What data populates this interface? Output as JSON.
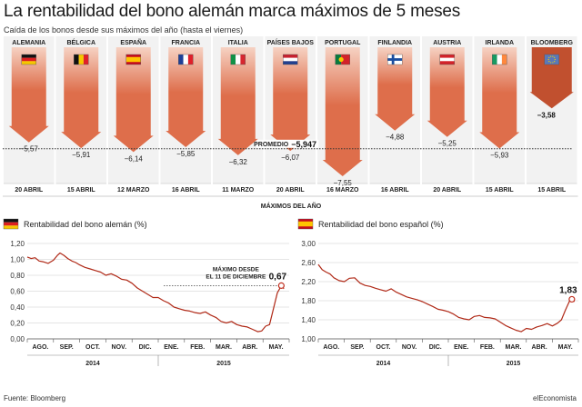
{
  "title": "La rentabilidad del bono alemán marca máximos de 5 meses",
  "subtitle": "Caída de los bonos desde sus máximos del año (hasta el viernes)",
  "source": "Fuente: Bloomberg",
  "credit": "elEconomista",
  "colors": {
    "arrow": "#de6e4b",
    "arrow_gradient_top": "#f6d2c3",
    "arrow_dark": "#c1502f",
    "column_bg": "#f2f2f2",
    "line": "#b02a18",
    "marker": "#c03020",
    "axis": "#555555"
  },
  "chart_data": [
    {
      "type": "bar",
      "name": "arrows",
      "categories": [
        "ALEMANIA",
        "BÉLGICA",
        "ESPAÑA",
        "FRANCIA",
        "ITALIA",
        "PAÍSES BAJOS",
        "PORTUGAL",
        "FINLANDIA",
        "AUSTRIA",
        "IRLANDA",
        "BLOOMBERG"
      ],
      "flags": [
        "germany",
        "belgium",
        "spain",
        "france",
        "italy",
        "netherlands",
        "portugal",
        "finland",
        "austria",
        "ireland",
        "eurozone"
      ],
      "values": [
        -5.57,
        -5.91,
        -6.14,
        -5.85,
        -6.32,
        -6.07,
        -7.55,
        -4.88,
        -5.25,
        -5.93,
        -3.58
      ],
      "value_labels": [
        "−5,57",
        "−5,91",
        "−6,14",
        "−5,85",
        "−6,32",
        "−6,07",
        "−7,55",
        "−4,88",
        "−5,25",
        "−5,93",
        "−3,58"
      ],
      "dates": [
        "20 ABRIL",
        "15 ABRIL",
        "12 MARZO",
        "16 ABRIL",
        "11 MARZO",
        "20 ABRIL",
        "16 MARZO",
        "16 ABRIL",
        "20 ABRIL",
        "15 ABRIL",
        "15 ABRIL"
      ],
      "average": -5.947,
      "average_label": "PROMEDIO",
      "average_value_label": "−5,947",
      "xlabel": "MÁXIMOS DEL AÑO"
    },
    {
      "type": "line",
      "name": "german",
      "legend": "Rentabilidad del bono alemán (%)",
      "ylim": [
        0,
        1.2
      ],
      "yticks": [
        0,
        0.2,
        0.4,
        0.6,
        0.8,
        1.0,
        1.2
      ],
      "ytick_labels": [
        "0,00",
        "0,20",
        "0,40",
        "0,60",
        "0,80",
        "1,00",
        "1,20"
      ],
      "xlim": [
        0,
        10
      ],
      "xticks": [
        0.5,
        1.5,
        2.5,
        3.5,
        4.5,
        5.5,
        6.5,
        7.5,
        8.5,
        9.5
      ],
      "xtick_labels": [
        "AGO.",
        "SEP.",
        "OCT.",
        "NOV.",
        "DIC.",
        "ENE.",
        "FEB.",
        "MAR.",
        "ABR.",
        "MAY."
      ],
      "years": [
        {
          "label": "2014",
          "at": 2.5
        },
        {
          "label": "2015",
          "at": 7.5
        }
      ],
      "year_dividers": [
        5
      ],
      "grid": true,
      "annotation": {
        "text": [
          "MÁXIMO DESDE",
          "EL 11 DE DICIEMBRE"
        ],
        "value_label": "0,67",
        "value": 0.67,
        "x": 9.7
      },
      "x": [
        0,
        0.15,
        0.3,
        0.45,
        0.6,
        0.8,
        1.0,
        1.15,
        1.25,
        1.4,
        1.55,
        1.7,
        1.85,
        2.0,
        2.2,
        2.4,
        2.6,
        2.8,
        3.0,
        3.2,
        3.4,
        3.6,
        3.8,
        4.0,
        4.2,
        4.4,
        4.6,
        4.8,
        5.0,
        5.2,
        5.4,
        5.6,
        5.8,
        6.0,
        6.2,
        6.4,
        6.6,
        6.8,
        7.0,
        7.2,
        7.4,
        7.6,
        7.8,
        8.0,
        8.2,
        8.4,
        8.6,
        8.8,
        8.95,
        9.1,
        9.25,
        9.4,
        9.55,
        9.7,
        9.8
      ],
      "y": [
        1.03,
        1.01,
        1.02,
        0.98,
        0.97,
        0.95,
        0.99,
        1.05,
        1.08,
        1.05,
        1.01,
        0.98,
        0.96,
        0.93,
        0.9,
        0.88,
        0.86,
        0.84,
        0.8,
        0.82,
        0.79,
        0.75,
        0.74,
        0.7,
        0.64,
        0.6,
        0.56,
        0.52,
        0.52,
        0.48,
        0.45,
        0.4,
        0.38,
        0.36,
        0.35,
        0.33,
        0.32,
        0.34,
        0.3,
        0.27,
        0.22,
        0.2,
        0.22,
        0.18,
        0.16,
        0.15,
        0.12,
        0.09,
        0.1,
        0.16,
        0.18,
        0.38,
        0.58,
        0.67,
        0.63
      ]
    },
    {
      "type": "line",
      "name": "spanish",
      "legend": "Rentabilidad del bono español (%)",
      "ylim": [
        1.0,
        3.0
      ],
      "yticks": [
        1.0,
        1.4,
        1.8,
        2.2,
        2.6,
        3.0
      ],
      "ytick_labels": [
        "1,00",
        "1,40",
        "1,80",
        "2,20",
        "2,60",
        "3,00"
      ],
      "xlim": [
        0,
        10
      ],
      "xticks": [
        0.5,
        1.5,
        2.5,
        3.5,
        4.5,
        5.5,
        6.5,
        7.5,
        8.5,
        9.5
      ],
      "xtick_labels": [
        "AGO.",
        "SEP.",
        "OCT.",
        "NOV.",
        "DIC.",
        "ENE.",
        "FEB.",
        "MAR.",
        "ABR.",
        "MAY."
      ],
      "years": [
        {
          "label": "2014",
          "at": 2.5
        },
        {
          "label": "2015",
          "at": 7.5
        }
      ],
      "year_dividers": [
        5
      ],
      "grid": true,
      "annotation": {
        "value_label": "1,83",
        "value": 1.83,
        "x": 9.75
      },
      "x": [
        0,
        0.15,
        0.3,
        0.45,
        0.6,
        0.8,
        1.0,
        1.2,
        1.4,
        1.6,
        1.8,
        2.0,
        2.2,
        2.4,
        2.6,
        2.8,
        3.0,
        3.2,
        3.4,
        3.6,
        3.8,
        4.0,
        4.2,
        4.4,
        4.6,
        4.8,
        5.0,
        5.2,
        5.4,
        5.6,
        5.8,
        6.0,
        6.2,
        6.4,
        6.6,
        6.8,
        7.0,
        7.2,
        7.4,
        7.6,
        7.8,
        8.0,
        8.2,
        8.4,
        8.6,
        8.8,
        9.0,
        9.2,
        9.35,
        9.5,
        9.65,
        9.75,
        9.85
      ],
      "y": [
        2.56,
        2.45,
        2.4,
        2.36,
        2.28,
        2.22,
        2.2,
        2.27,
        2.28,
        2.17,
        2.12,
        2.1,
        2.06,
        2.03,
        2.0,
        2.05,
        1.98,
        1.93,
        1.88,
        1.85,
        1.82,
        1.78,
        1.73,
        1.68,
        1.62,
        1.6,
        1.57,
        1.52,
        1.45,
        1.42,
        1.4,
        1.47,
        1.49,
        1.45,
        1.44,
        1.42,
        1.35,
        1.28,
        1.23,
        1.18,
        1.15,
        1.22,
        1.2,
        1.25,
        1.28,
        1.32,
        1.27,
        1.33,
        1.4,
        1.6,
        1.78,
        1.83,
        1.78
      ]
    }
  ]
}
